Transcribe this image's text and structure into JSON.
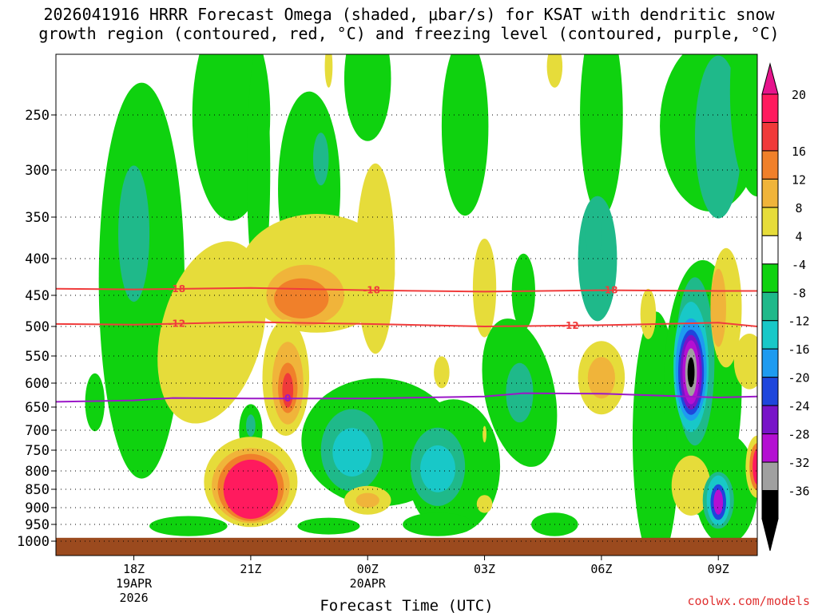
{
  "title": {
    "line1": "2026041916 HRRR Forecast Omega (shaded, μbar/s) for KSAT with dendritic snow",
    "line2": "growth region (contoured, red, °C) and freezing level (contoured, purple, °C)"
  },
  "credit": "coolwx.com/models",
  "chart_data": {
    "type": "heatmap",
    "title": "2026041916 HRRR Forecast Omega (shaded, μbar/s) for KSAT with dendritic snow growth region (contoured, red, °C) and freezing level (contoured, purple, °C)",
    "xlabel": "Forecast Time (UTC)",
    "ylabel": "",
    "x_ticks": [
      {
        "hour": 2,
        "label": "18Z",
        "sublabels": [
          "19APR",
          "2026"
        ]
      },
      {
        "hour": 5,
        "label": "21Z",
        "sublabels": []
      },
      {
        "hour": 8,
        "label": "00Z",
        "sublabels": [
          "20APR"
        ]
      },
      {
        "hour": 11,
        "label": "03Z",
        "sublabels": []
      },
      {
        "hour": 14,
        "label": "06Z",
        "sublabels": []
      },
      {
        "hour": 17,
        "label": "09Z",
        "sublabels": []
      }
    ],
    "xlim": [
      0,
      18
    ],
    "y_ticks": [
      250,
      300,
      350,
      400,
      450,
      500,
      550,
      600,
      650,
      700,
      750,
      800,
      850,
      900,
      950,
      1000
    ],
    "ylim_hPa": [
      200,
      1000
    ],
    "grid": true,
    "ground_level_hPa": 990,
    "colorbar": {
      "labels": [
        "20",
        "16",
        "12",
        "8",
        "4",
        "-4",
        "-8",
        "-12",
        "-16",
        "-20",
        "-24",
        "-28",
        "-32",
        "-36"
      ],
      "colors": [
        "#ff1a5e",
        "#f03a3a",
        "#f0802a",
        "#f0b43a",
        "#e6dc3a",
        "#ffffff",
        "#0fd20f",
        "#1fb98a",
        "#18c8c8",
        "#1e9bf0",
        "#1e46dc",
        "#7814c8",
        "#b40fd2",
        "#a0a0a0",
        "#000000"
      ],
      "top_arrow_color": "#e6148c",
      "bottom_arrow_color": "#000000"
    },
    "contours": [
      {
        "name": "-18",
        "type": "dendritic",
        "color": "#f03c3c",
        "points": [
          [
            0,
            441
          ],
          [
            2,
            442
          ],
          [
            5,
            440
          ],
          [
            8,
            443
          ],
          [
            11,
            445
          ],
          [
            14,
            443
          ],
          [
            17,
            444
          ],
          [
            18,
            444
          ]
        ],
        "labels": [
          {
            "hour": 3.1,
            "text": "-18"
          },
          {
            "hour": 8.1,
            "text": "-18"
          },
          {
            "hour": 14.2,
            "text": "-18"
          }
        ]
      },
      {
        "name": "-12",
        "type": "dendritic",
        "color": "#f03c3c",
        "points": [
          [
            0,
            496
          ],
          [
            2,
            497
          ],
          [
            5,
            493
          ],
          [
            8,
            496
          ],
          [
            11,
            500
          ],
          [
            14,
            498
          ],
          [
            17,
            494
          ],
          [
            18,
            500
          ]
        ],
        "labels": [
          {
            "hour": 3.1,
            "text": "-12"
          },
          {
            "hour": 13.2,
            "text": "-12"
          }
        ]
      },
      {
        "name": "0",
        "type": "freezing",
        "color": "#9b18c8",
        "points": [
          [
            0,
            639
          ],
          [
            2,
            636
          ],
          [
            3,
            631
          ],
          [
            5,
            632
          ],
          [
            8,
            632
          ],
          [
            11,
            628
          ],
          [
            12,
            621
          ],
          [
            14,
            622
          ],
          [
            17,
            630
          ],
          [
            18,
            628
          ]
        ],
        "labels": [
          {
            "hour": 5.95,
            "text": "0"
          }
        ]
      }
    ],
    "blobs": [
      {
        "omega": -4,
        "cx": 2.2,
        "cy": 430,
        "rx": 1.1,
        "ry": 320,
        "rot": 0
      },
      {
        "omega": -8,
        "cx": 2.0,
        "cy": 370,
        "rx": 0.4,
        "ry": 80,
        "rot": 0
      },
      {
        "omega": -4,
        "cx": 1.0,
        "cy": 640,
        "rx": 0.25,
        "ry": 60,
        "rot": 0
      },
      {
        "omega": -4,
        "cx": 4.5,
        "cy": 250,
        "rx": 1.0,
        "ry": 160,
        "rot": 0
      },
      {
        "omega": -4,
        "cx": 5.2,
        "cy": 300,
        "rx": 0.3,
        "ry": 160,
        "rot": 0
      },
      {
        "omega": -4,
        "cx": 6.5,
        "cy": 320,
        "rx": 0.8,
        "ry": 100,
        "rot": 0
      },
      {
        "omega": -8,
        "cx": 6.8,
        "cy": 290,
        "rx": 0.2,
        "ry": 25,
        "rot": 0
      },
      {
        "omega": -4,
        "cx": 8.0,
        "cy": 220,
        "rx": 0.6,
        "ry": 90,
        "rot": 0
      },
      {
        "omega": -4,
        "cx": 10.5,
        "cy": 260,
        "rx": 0.6,
        "ry": 110,
        "rot": 0
      },
      {
        "omega": -4,
        "cx": 14.0,
        "cy": 250,
        "rx": 0.55,
        "ry": 150,
        "rot": 0
      },
      {
        "omega": -8,
        "cx": 13.9,
        "cy": 400,
        "rx": 0.5,
        "ry": 80,
        "rot": 0
      },
      {
        "omega": -8,
        "cx": 13.8,
        "cy": 370,
        "rx": 0.2,
        "ry": 35,
        "rot": 0
      },
      {
        "omega": -4,
        "cx": 16.8,
        "cy": 260,
        "rx": 1.3,
        "ry": 100,
        "rot": 0
      },
      {
        "omega": -8,
        "cx": 17.0,
        "cy": 270,
        "rx": 0.6,
        "ry": 80,
        "rot": 0
      },
      {
        "omega": -4,
        "cx": 18.0,
        "cy": 230,
        "rx": 0.7,
        "ry": 180,
        "rot": 0
      },
      {
        "omega": -4,
        "cx": 12.0,
        "cy": 445,
        "rx": 0.3,
        "ry": 55,
        "rot": 0
      },
      {
        "omega": -4,
        "cx": 11.9,
        "cy": 620,
        "rx": 0.9,
        "ry": 150,
        "rot": -0.2
      },
      {
        "omega": -8,
        "cx": 11.9,
        "cy": 620,
        "rx": 0.35,
        "ry": 60,
        "rot": 0
      },
      {
        "omega": -4,
        "cx": 15.4,
        "cy": 720,
        "rx": 0.6,
        "ry": 280,
        "rot": 0
      },
      {
        "omega": -4,
        "cx": 16.6,
        "cy": 610,
        "rx": 1.0,
        "ry": 240,
        "rot": 0
      },
      {
        "omega": -4,
        "cx": 17.2,
        "cy": 850,
        "rx": 0.8,
        "ry": 150,
        "rot": 0
      },
      {
        "omega": -8,
        "cx": 16.4,
        "cy": 560,
        "rx": 0.5,
        "ry": 150,
        "rot": 0
      },
      {
        "omega": -12,
        "cx": 16.3,
        "cy": 570,
        "rx": 0.45,
        "ry": 120,
        "rot": 0
      },
      {
        "omega": -16,
        "cx": 16.3,
        "cy": 575,
        "rx": 0.4,
        "ry": 95,
        "rot": 0
      },
      {
        "omega": -20,
        "cx": 16.3,
        "cy": 580,
        "rx": 0.33,
        "ry": 80,
        "rot": 0
      },
      {
        "omega": -24,
        "cx": 16.3,
        "cy": 580,
        "rx": 0.28,
        "ry": 70,
        "rot": 0
      },
      {
        "omega": -28,
        "cx": 16.3,
        "cy": 580,
        "rx": 0.22,
        "ry": 60,
        "rot": 0
      },
      {
        "omega": -32,
        "cx": 16.3,
        "cy": 580,
        "rx": 0.15,
        "ry": 45,
        "rot": 0
      },
      {
        "omega": -36,
        "cx": 16.3,
        "cy": 580,
        "rx": 0.09,
        "ry": 28,
        "rot": 0
      },
      {
        "omega": 4,
        "cx": 16.3,
        "cy": 840,
        "rx": 0.5,
        "ry": 80,
        "rot": 0
      },
      {
        "omega": -8,
        "cx": 17.0,
        "cy": 880,
        "rx": 0.4,
        "ry": 80,
        "rot": 0
      },
      {
        "omega": -12,
        "cx": 17.0,
        "cy": 880,
        "rx": 0.3,
        "ry": 70,
        "rot": 0
      },
      {
        "omega": -20,
        "cx": 17.0,
        "cy": 885,
        "rx": 0.2,
        "ry": 50,
        "rot": 0
      },
      {
        "omega": -28,
        "cx": 17.0,
        "cy": 885,
        "rx": 0.12,
        "ry": 35,
        "rot": 0
      },
      {
        "omega": -4,
        "cx": 10.5,
        "cy": 900,
        "rx": 0.4,
        "ry": 60,
        "rot": 0
      },
      {
        "omega": -4,
        "cx": 8.3,
        "cy": 730,
        "rx": 2.0,
        "ry": 150,
        "rot": 0.05
      },
      {
        "omega": -4,
        "cx": 5.0,
        "cy": 700,
        "rx": 0.3,
        "ry": 60,
        "rot": 0
      },
      {
        "omega": -8,
        "cx": 5.0,
        "cy": 690,
        "rx": 0.12,
        "ry": 25,
        "rot": 0
      },
      {
        "omega": -4,
        "cx": 10.2,
        "cy": 790,
        "rx": 1.2,
        "ry": 170,
        "rot": 0
      },
      {
        "omega": -8,
        "cx": 7.6,
        "cy": 750,
        "rx": 0.8,
        "ry": 100,
        "rot": 0
      },
      {
        "omega": -12,
        "cx": 7.6,
        "cy": 755,
        "rx": 0.5,
        "ry": 60,
        "rot": 0
      },
      {
        "omega": -8,
        "cx": 9.8,
        "cy": 790,
        "rx": 0.7,
        "ry": 100,
        "rot": 0
      },
      {
        "omega": -12,
        "cx": 9.8,
        "cy": 795,
        "rx": 0.45,
        "ry": 60,
        "rot": 0
      },
      {
        "omega": -4,
        "cx": 3.4,
        "cy": 955,
        "rx": 1.0,
        "ry": 30,
        "rot": 0
      },
      {
        "omega": -4,
        "cx": 7.0,
        "cy": 955,
        "rx": 0.8,
        "ry": 25,
        "rot": 0
      },
      {
        "omega": -4,
        "cx": 9.8,
        "cy": 950,
        "rx": 0.9,
        "ry": 35,
        "rot": 0
      },
      {
        "omega": -4,
        "cx": 12.8,
        "cy": 950,
        "rx": 0.6,
        "ry": 35,
        "rot": 0
      },
      {
        "omega": 4,
        "cx": 6.7,
        "cy": 420,
        "rx": 2.0,
        "ry": 80,
        "rot": 0
      },
      {
        "omega": 4,
        "cx": 8.2,
        "cy": 400,
        "rx": 0.5,
        "ry": 120,
        "rot": 0
      },
      {
        "omega": 8,
        "cx": 6.4,
        "cy": 450,
        "rx": 1.0,
        "ry": 45,
        "rot": 0
      },
      {
        "omega": 12,
        "cx": 6.3,
        "cy": 455,
        "rx": 0.7,
        "ry": 30,
        "rot": 0
      },
      {
        "omega": 4,
        "cx": 4.0,
        "cy": 510,
        "rx": 1.3,
        "ry": 150,
        "rot": 0.25
      },
      {
        "omega": 4,
        "cx": 5.9,
        "cy": 590,
        "rx": 0.6,
        "ry": 110,
        "rot": 0
      },
      {
        "omega": 8,
        "cx": 5.95,
        "cy": 600,
        "rx": 0.4,
        "ry": 80,
        "rot": 0
      },
      {
        "omega": 12,
        "cx": 5.95,
        "cy": 610,
        "rx": 0.25,
        "ry": 50,
        "rot": 0
      },
      {
        "omega": 16,
        "cx": 5.95,
        "cy": 615,
        "rx": 0.14,
        "ry": 35,
        "rot": 0
      },
      {
        "omega": 4,
        "cx": 5.0,
        "cy": 830,
        "rx": 1.2,
        "ry": 120,
        "rot": 0
      },
      {
        "omega": 8,
        "cx": 5.0,
        "cy": 840,
        "rx": 1.0,
        "ry": 100,
        "rot": 0
      },
      {
        "omega": 12,
        "cx": 5.0,
        "cy": 845,
        "rx": 0.85,
        "ry": 90,
        "rot": 0
      },
      {
        "omega": 20,
        "cx": 5.0,
        "cy": 850,
        "rx": 0.7,
        "ry": 80,
        "rot": 0
      },
      {
        "omega": 4,
        "cx": 8.0,
        "cy": 880,
        "rx": 0.6,
        "ry": 40,
        "rot": 0
      },
      {
        "omega": 8,
        "cx": 8.0,
        "cy": 880,
        "rx": 0.3,
        "ry": 20,
        "rot": 0
      },
      {
        "omega": 4,
        "cx": 14.0,
        "cy": 590,
        "rx": 0.6,
        "ry": 70,
        "rot": 0
      },
      {
        "omega": 8,
        "cx": 14.0,
        "cy": 590,
        "rx": 0.35,
        "ry": 40,
        "rot": 0
      },
      {
        "omega": 4,
        "cx": 11.0,
        "cy": 440,
        "rx": 0.3,
        "ry": 70,
        "rot": 0
      },
      {
        "omega": 4,
        "cx": 9.9,
        "cy": 580,
        "rx": 0.2,
        "ry": 30,
        "rot": 0
      },
      {
        "omega": 4,
        "cx": 15.2,
        "cy": 480,
        "rx": 0.2,
        "ry": 40,
        "rot": 0
      },
      {
        "omega": 4,
        "cx": 11.0,
        "cy": 890,
        "rx": 0.2,
        "ry": 25,
        "rot": 0
      },
      {
        "omega": 4,
        "cx": 11.0,
        "cy": 710,
        "rx": 0.05,
        "ry": 20,
        "rot": 0
      },
      {
        "omega": 4,
        "cx": 17.2,
        "cy": 470,
        "rx": 0.4,
        "ry": 90,
        "rot": 0
      },
      {
        "omega": 8,
        "cx": 17.0,
        "cy": 470,
        "rx": 0.2,
        "ry": 60,
        "rot": 0
      },
      {
        "omega": 4,
        "cx": 17.8,
        "cy": 560,
        "rx": 0.4,
        "ry": 50,
        "rot": 0
      },
      {
        "omega": 4,
        "cx": 18.0,
        "cy": 790,
        "rx": 0.3,
        "ry": 80,
        "rot": 0
      },
      {
        "omega": 12,
        "cx": 18.0,
        "cy": 790,
        "rx": 0.2,
        "ry": 60,
        "rot": 0
      },
      {
        "omega": 20,
        "cx": 18.0,
        "cy": 790,
        "rx": 0.12,
        "ry": 45,
        "rot": 0
      },
      {
        "omega": 4,
        "cx": 7.0,
        "cy": 210,
        "rx": 0.1,
        "ry": 25,
        "rot": 0
      },
      {
        "omega": 4,
        "cx": 12.8,
        "cy": 210,
        "rx": 0.2,
        "ry": 25,
        "rot": 0
      }
    ]
  }
}
